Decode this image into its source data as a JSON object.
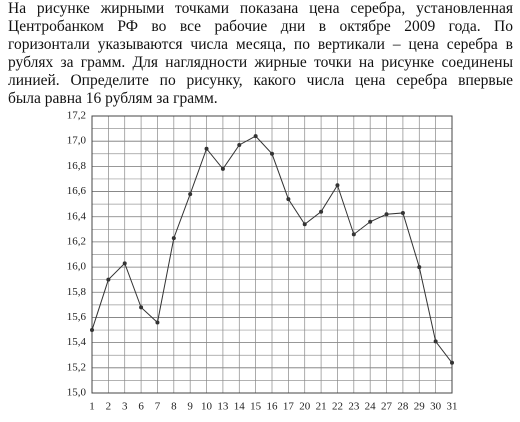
{
  "text_lines": [
    "На рисунке жирными точками показана цена серебра, установленная",
    "Центробанком РФ во все рабочие дни в октябре 2009 года. По",
    "горизонтали указываются числа месяца, по вертикали – цена серебра в",
    "рублях за грамм. Для наглядности жирные точки на рисунке соединены",
    "линией. Определите по рисунку, какого числа цена серебра впервые",
    "была равна 16 рублям за грамм."
  ],
  "chart_data": {
    "type": "line",
    "categories": [
      "1",
      "2",
      "3",
      "6",
      "7",
      "8",
      "9",
      "10",
      "13",
      "14",
      "15",
      "16",
      "17",
      "20",
      "21",
      "22",
      "23",
      "24",
      "27",
      "28",
      "29",
      "30",
      "31"
    ],
    "values": [
      15.5,
      15.9,
      16.03,
      15.68,
      15.56,
      16.23,
      16.58,
      16.94,
      16.78,
      16.97,
      17.04,
      16.9,
      16.54,
      16.34,
      16.44,
      16.65,
      16.26,
      16.36,
      16.42,
      16.43,
      16.0,
      15.41,
      15.24
    ],
    "color": "#333333",
    "ylim": [
      15.0,
      17.2
    ],
    "yticks": [
      {
        "value": 15.0,
        "label": "15,0"
      },
      {
        "value": 15.2,
        "label": "15,2"
      },
      {
        "value": 15.4,
        "label": "15,4"
      },
      {
        "value": 15.6,
        "label": "15,6"
      },
      {
        "value": 15.8,
        "label": "15,8"
      },
      {
        "value": 16.0,
        "label": "16,0"
      },
      {
        "value": 16.2,
        "label": "16,2"
      },
      {
        "value": 16.4,
        "label": "16,4"
      },
      {
        "value": 16.6,
        "label": "16,6"
      },
      {
        "value": 16.8,
        "label": "16,8"
      },
      {
        "value": 17.0,
        "label": "17,0"
      },
      {
        "value": 17.2,
        "label": "17,2"
      }
    ],
    "grid": true
  }
}
